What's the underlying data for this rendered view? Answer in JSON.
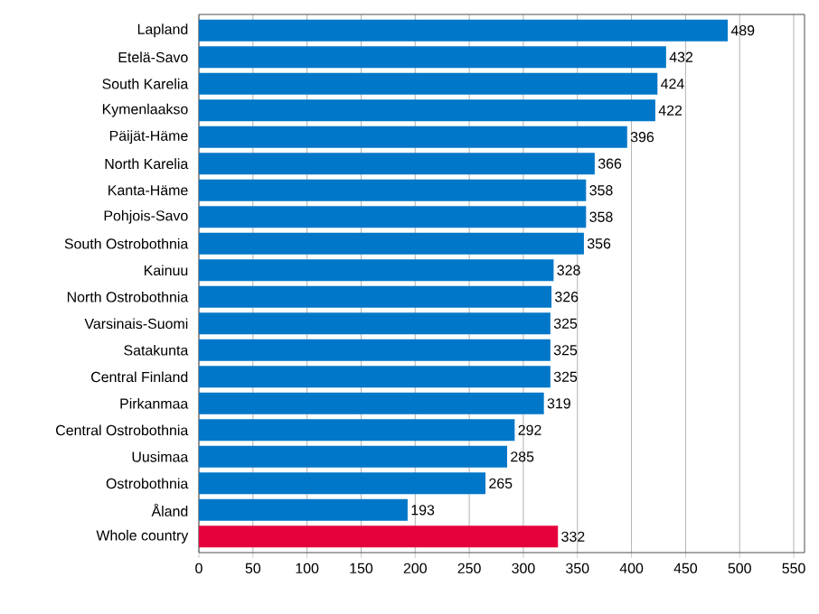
{
  "chart_data": {
    "type": "bar",
    "orientation": "horizontal",
    "categories": [
      "Lapland",
      "Etelä-Savo",
      "South Karelia",
      "Kymenlaakso",
      "Päijät-Häme",
      "North Karelia",
      "Kanta-Häme",
      "Pohjois-Savo",
      "South Ostrobothnia",
      "Kainuu",
      "North Ostrobothnia",
      "Varsinais-Suomi",
      "Satakunta",
      "Central Finland",
      "Pirkanmaa",
      "Central Ostrobothnia",
      "Uusimaa",
      "Ostrobothnia",
      "Åland",
      "Whole country"
    ],
    "values": [
      489,
      432,
      424,
      422,
      396,
      366,
      358,
      358,
      356,
      328,
      326,
      325,
      325,
      325,
      319,
      292,
      285,
      265,
      193,
      332
    ],
    "colors": [
      "#0077c8",
      "#0077c8",
      "#0077c8",
      "#0077c8",
      "#0077c8",
      "#0077c8",
      "#0077c8",
      "#0077c8",
      "#0077c8",
      "#0077c8",
      "#0077c8",
      "#0077c8",
      "#0077c8",
      "#0077c8",
      "#0077c8",
      "#0077c8",
      "#0077c8",
      "#0077c8",
      "#0077c8",
      "#e5003c"
    ],
    "xlim": [
      0,
      560
    ],
    "xticks": [
      0,
      50,
      100,
      150,
      200,
      250,
      300,
      350,
      400,
      450,
      500,
      550
    ],
    "grid": "x",
    "data_labels": true
  }
}
